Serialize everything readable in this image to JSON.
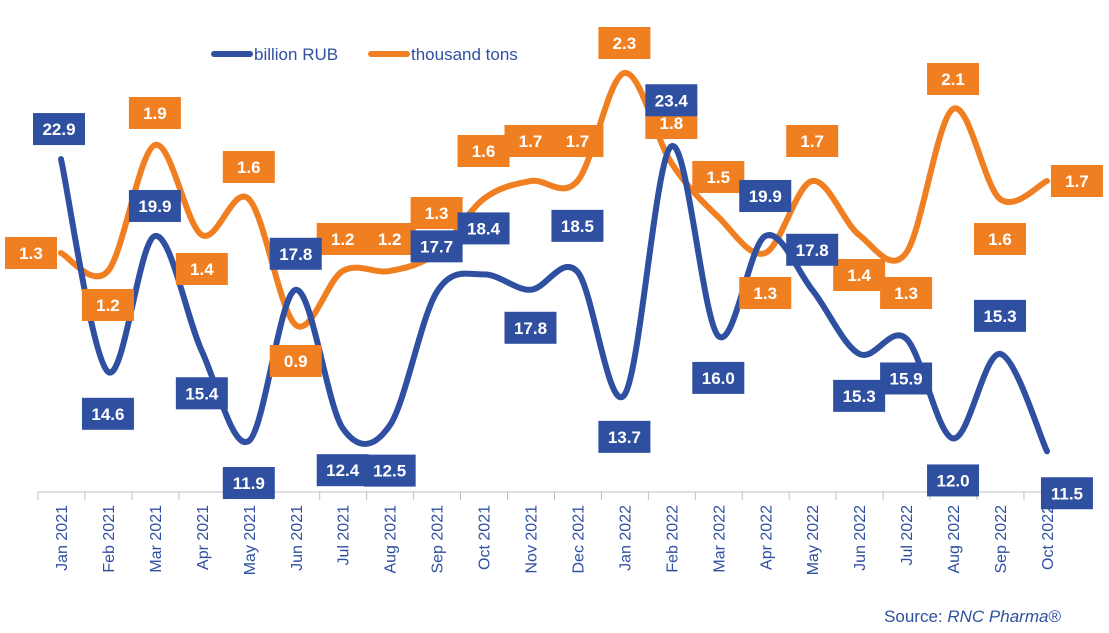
{
  "chart_data": {
    "type": "line",
    "categories": [
      "Jan 2021",
      "Feb 2021",
      "Mar 2021",
      "Apr 2021",
      "May 2021",
      "Jun 2021",
      "Jul 2021",
      "Aug 2021",
      "Sep 2021",
      "Oct 2021",
      "Nov 2021",
      "Dec 2021",
      "Jan 2022",
      "Feb 2022",
      "Mar 2022",
      "Apr 2022",
      "May 2022",
      "Jun 2022",
      "Jul 2022",
      "Aug 2022",
      "Sep 2022",
      "Oct 2022"
    ],
    "series": [
      {
        "name": "billion RUB",
        "color": "#2f4fa0",
        "axis": "left",
        "values": [
          22.9,
          14.6,
          19.9,
          15.4,
          11.9,
          17.8,
          12.4,
          12.5,
          17.7,
          18.4,
          17.8,
          18.5,
          13.7,
          23.4,
          16.0,
          19.9,
          17.8,
          15.3,
          15.9,
          12.0,
          15.3,
          11.5
        ]
      },
      {
        "name": "thousand tons",
        "color": "#f07f22",
        "axis": "right",
        "values": [
          1.3,
          1.2,
          1.9,
          1.4,
          1.6,
          0.9,
          1.2,
          1.2,
          1.3,
          1.6,
          1.7,
          1.7,
          2.3,
          1.8,
          1.5,
          1.3,
          1.7,
          1.4,
          1.3,
          2.1,
          1.6,
          1.7
        ]
      }
    ],
    "legend_position": "top",
    "grid": false
  },
  "source": {
    "prefix": "Source: ",
    "brand": "RNC Pharma",
    "suffix": "®"
  }
}
